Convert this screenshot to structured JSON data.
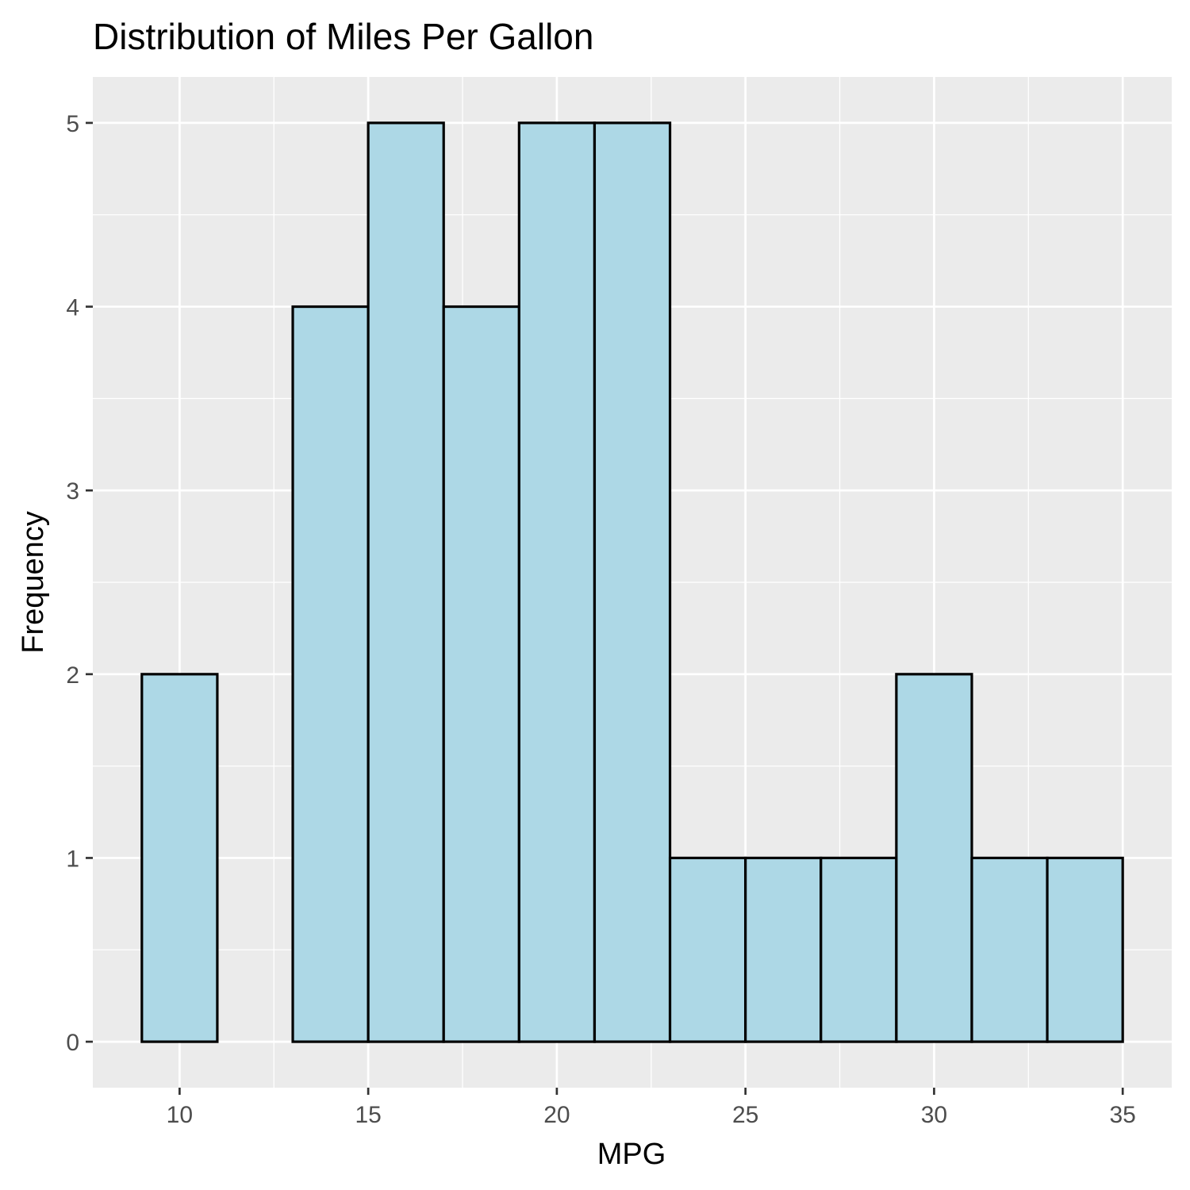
{
  "chart_data": {
    "type": "bar",
    "title": "Distribution of Miles Per Gallon",
    "xlabel": "MPG",
    "ylabel": "Frequency",
    "bins": [
      {
        "x0": 9,
        "x1": 11,
        "count": 2
      },
      {
        "x0": 11,
        "x1": 13,
        "count": 0
      },
      {
        "x0": 13,
        "x1": 15,
        "count": 4
      },
      {
        "x0": 15,
        "x1": 17,
        "count": 5
      },
      {
        "x0": 17,
        "x1": 19,
        "count": 4
      },
      {
        "x0": 19,
        "x1": 21,
        "count": 5
      },
      {
        "x0": 21,
        "x1": 23,
        "count": 5
      },
      {
        "x0": 23,
        "x1": 25,
        "count": 1
      },
      {
        "x0": 25,
        "x1": 27,
        "count": 1
      },
      {
        "x0": 27,
        "x1": 29,
        "count": 1
      },
      {
        "x0": 29,
        "x1": 31,
        "count": 2
      },
      {
        "x0": 31,
        "x1": 33,
        "count": 1
      },
      {
        "x0": 33,
        "x1": 35,
        "count": 1
      }
    ],
    "x_ticks": [
      10,
      15,
      20,
      25,
      30,
      35
    ],
    "y_ticks": [
      0,
      1,
      2,
      3,
      4,
      5
    ],
    "xlim": [
      7.7,
      36.3
    ],
    "ylim": [
      -0.25,
      5.25
    ],
    "grid": true,
    "colors": {
      "bar_fill": "#add8e6",
      "bar_stroke": "#000000",
      "panel_background": "#ebebeb",
      "grid_line": "#ffffff"
    }
  }
}
